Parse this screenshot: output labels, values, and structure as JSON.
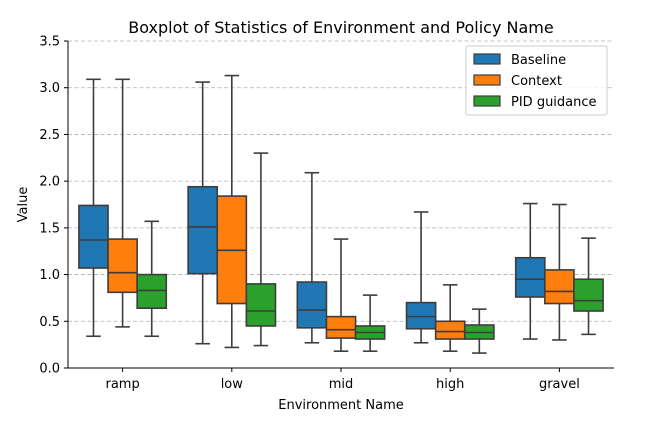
{
  "chart_data": {
    "type": "boxplot",
    "title": "Boxplot of Statistics of Environment and Policy Name",
    "xlabel": "Environment Name",
    "ylabel": "Value",
    "ylim": [
      0,
      3.5
    ],
    "yticks": [
      "0.0",
      "0.5",
      "1.0",
      "1.5",
      "2.0",
      "2.5",
      "3.0",
      "3.5"
    ],
    "ytick_values": [
      0,
      0.5,
      1.0,
      1.5,
      2.0,
      2.5,
      3.0,
      3.5
    ],
    "grid": "y-dashed",
    "legend_position": "top-right",
    "categories": [
      "ramp",
      "low",
      "mid",
      "high",
      "gravel"
    ],
    "series": [
      {
        "name": "Baseline",
        "color": "#1f77b4",
        "boxes": [
          {
            "whislo": 0.34,
            "q1": 1.07,
            "med": 1.37,
            "q3": 1.74,
            "whishi": 3.09
          },
          {
            "whislo": 0.26,
            "q1": 1.01,
            "med": 1.51,
            "q3": 1.94,
            "whishi": 3.06
          },
          {
            "whislo": 0.27,
            "q1": 0.43,
            "med": 0.62,
            "q3": 0.92,
            "whishi": 2.09
          },
          {
            "whislo": 0.27,
            "q1": 0.42,
            "med": 0.55,
            "q3": 0.7,
            "whishi": 1.67
          },
          {
            "whislo": 0.31,
            "q1": 0.76,
            "med": 0.95,
            "q3": 1.18,
            "whishi": 1.76
          }
        ]
      },
      {
        "name": "Context",
        "color": "#ff7f0e",
        "boxes": [
          {
            "whislo": 0.44,
            "q1": 0.81,
            "med": 1.02,
            "q3": 1.38,
            "whishi": 3.09
          },
          {
            "whislo": 0.22,
            "q1": 0.69,
            "med": 1.26,
            "q3": 1.84,
            "whishi": 3.13
          },
          {
            "whislo": 0.18,
            "q1": 0.32,
            "med": 0.41,
            "q3": 0.55,
            "whishi": 1.38
          },
          {
            "whislo": 0.18,
            "q1": 0.31,
            "med": 0.39,
            "q3": 0.5,
            "whishi": 0.89
          },
          {
            "whislo": 0.3,
            "q1": 0.69,
            "med": 0.82,
            "q3": 1.05,
            "whishi": 1.75
          }
        ]
      },
      {
        "name": "PID guidance",
        "color": "#2ca02c",
        "boxes": [
          {
            "whislo": 0.34,
            "q1": 0.64,
            "med": 0.83,
            "q3": 1.0,
            "whishi": 1.57
          },
          {
            "whislo": 0.24,
            "q1": 0.45,
            "med": 0.61,
            "q3": 0.9,
            "whishi": 2.3
          },
          {
            "whislo": 0.18,
            "q1": 0.31,
            "med": 0.38,
            "q3": 0.45,
            "whishi": 0.78
          },
          {
            "whislo": 0.16,
            "q1": 0.31,
            "med": 0.38,
            "q3": 0.46,
            "whishi": 0.63
          },
          {
            "whislo": 0.36,
            "q1": 0.61,
            "med": 0.72,
            "q3": 0.95,
            "whishi": 1.39
          }
        ]
      }
    ]
  }
}
